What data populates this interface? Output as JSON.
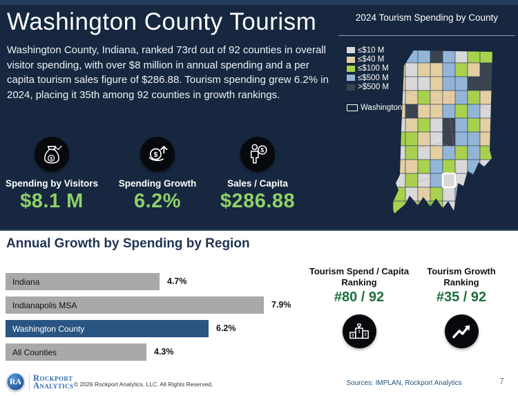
{
  "hero": {
    "title": "Washington County Tourism",
    "description": "Washington County, Indiana, ranked 73rd out of 92 counties in overall visitor spending, with over $8 million in annual spending and a per capita tourism sales figure of $286.88. Tourism spending grew 6.2% in 2024, placing it 35th among 92 counties in growth rankings."
  },
  "colors": {
    "background_navy": "#16273f",
    "kpi_green": "#8ed168",
    "ranking_green": "#1b6e3c",
    "highlight_bar_blue": "#2a5583",
    "bar_gray": "#a9a9a9",
    "title_navy": "#1f3353"
  },
  "kpis": [
    {
      "label": "Spending by Visitors",
      "value": "$8.1 M",
      "icon": "money-bag-icon"
    },
    {
      "label": "Spending Growth",
      "value": "6.2%",
      "icon": "coin-growth-icon"
    },
    {
      "label": "Sales / Capita",
      "value": "$286.88",
      "icon": "person-dollar-icon"
    }
  ],
  "rankings": [
    {
      "heading_line1": "Tourism Spend / Capita",
      "heading_line2": "Ranking",
      "value": "#80 / 92",
      "icon": "podium-icon"
    },
    {
      "heading_line1": "Tourism Growth",
      "heading_line2": "Ranking",
      "value": "#35 / 92",
      "icon": "trend-arrow-icon"
    }
  ],
  "chart_data": [
    {
      "type": "bar",
      "title": "Annual Growth by Spending by Region",
      "orientation": "horizontal",
      "categories": [
        "Indiana",
        "Indianapolis MSA",
        "Washington County",
        "All Counties"
      ],
      "values": [
        4.7,
        7.9,
        6.2,
        4.3
      ],
      "value_labels": [
        "4.7%",
        "7.9%",
        "6.2%",
        "4.3%"
      ],
      "unit": "%",
      "xlim": [
        0,
        8.5
      ],
      "highlight_category": "Washington County",
      "bar_colors": [
        "#a9a9a9",
        "#a9a9a9",
        "#2a5583",
        "#a9a9a9"
      ],
      "legend_position": "none",
      "grid": false
    },
    {
      "type": "heatmap",
      "subtype": "choropleth-county-map",
      "title": "2024 Tourism Spending by County",
      "region": "Indiana",
      "year": "2024",
      "legend": [
        {
          "key": "W",
          "label": "≤$10 M",
          "color": "#d9d9d9"
        },
        {
          "key": "T",
          "label": "≤$40 M",
          "color": "#e4cfa3"
        },
        {
          "key": "G",
          "label": "≤$100 M",
          "color": "#a8d24d"
        },
        {
          "key": "B",
          "label": "≤$500 M",
          "color": "#93b6d8"
        },
        {
          "key": "D",
          "label": ">$500 M",
          "color": "#3b4450"
        }
      ],
      "palette": {
        "W": "#d9d9d9",
        "T": "#e4cfa3",
        "G": "#a8d24d",
        "B": "#93b6d8",
        "D": "#3b4450"
      },
      "highlight_label": "Washington",
      "highlight_value_bin": "≤$10 M",
      "grid_rows": [
        "WBBDBWGG",
        "TWTTBGTD",
        "TWWTBBDD",
        "WTGTTBGT",
        "TDTTBGBW",
        "WTGWDBGT",
        "GGTWDBBT",
        "WGWTBGBG",
        "TTGBGWBW",
        "WGWBWWBG",
        "GWTGWBBB",
        "GTGGWDBG",
        "WGTGBWGB"
      ],
      "washington_cell": {
        "col": 4,
        "row": 9
      }
    }
  ],
  "footer": {
    "logo_initials": "RA",
    "logo_name_line1": "Rockport",
    "logo_name_line2": "Analytics",
    "copyright": "© 2026 Rockport Analytics, LLC. All Rights Reserved.",
    "sources": "Sources: IMPLAN, Rockport Analytics",
    "page_number": "7"
  }
}
